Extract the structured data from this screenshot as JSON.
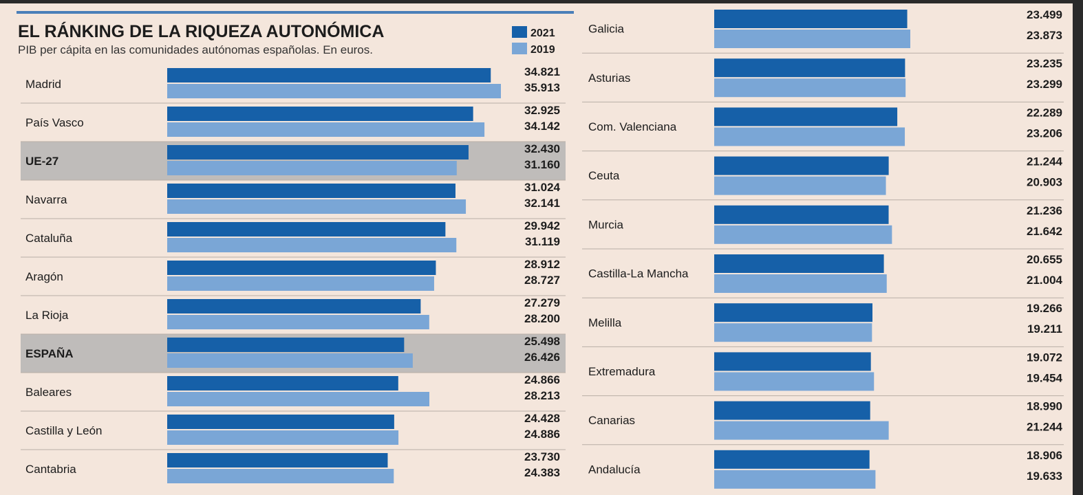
{
  "title": "EL RÁNKING DE LA RIQUEZA AUTONÓMICA",
  "subtitle": "PIB per cápita en las comunidades autónomas españolas. En euros.",
  "colors": {
    "y2021": "#1660a8",
    "y2019": "#7aa6d6",
    "highlight": "#bfbcba",
    "background": "#f4e6dc"
  },
  "chart_data": {
    "type": "bar",
    "orientation": "horizontal",
    "title": "EL RÁNKING DE LA RIQUEZA AUTONÓMICA",
    "subtitle": "PIB per cápita en las comunidades autónomas españolas. En euros.",
    "legend": [
      "2021",
      "2019"
    ],
    "legend_position": "top-right",
    "xlim": [
      0,
      36000
    ],
    "series": [
      {
        "name": "2021",
        "color": "#1660a8"
      },
      {
        "name": "2019",
        "color": "#7aa6d6"
      }
    ],
    "panels": [
      {
        "rows": [
          {
            "label": "Madrid",
            "v2021": 34821,
            "v2019": 35913,
            "t2021": "34.821",
            "t2019": "35.913",
            "highlight": false
          },
          {
            "label": "País Vasco",
            "v2021": 32925,
            "v2019": 34142,
            "t2021": "32.925",
            "t2019": "34.142",
            "highlight": false
          },
          {
            "label": "UE-27",
            "v2021": 32430,
            "v2019": 31160,
            "t2021": "32.430",
            "t2019": "31.160",
            "highlight": true
          },
          {
            "label": "Navarra",
            "v2021": 31024,
            "v2019": 32141,
            "t2021": "31.024",
            "t2019": "32.141",
            "highlight": false
          },
          {
            "label": "Cataluña",
            "v2021": 29942,
            "v2019": 31119,
            "t2021": "29.942",
            "t2019": "31.119",
            "highlight": false
          },
          {
            "label": "Aragón",
            "v2021": 28912,
            "v2019": 28727,
            "t2021": "28.912",
            "t2019": "28.727",
            "highlight": false
          },
          {
            "label": "La Rioja",
            "v2021": 27279,
            "v2019": 28200,
            "t2021": "27.279",
            "t2019": "28.200",
            "highlight": false
          },
          {
            "label": "ESPAÑA",
            "v2021": 25498,
            "v2019": 26426,
            "t2021": "25.498",
            "t2019": "26.426",
            "highlight": true
          },
          {
            "label": "Baleares",
            "v2021": 24866,
            "v2019": 28213,
            "t2021": "24.866",
            "t2019": "28.213",
            "highlight": false
          },
          {
            "label": "Castilla y León",
            "v2021": 24428,
            "v2019": 24886,
            "t2021": "24.428",
            "t2019": "24.886",
            "highlight": false
          },
          {
            "label": "Cantabria",
            "v2021": 23730,
            "v2019": 24383,
            "t2021": "23.730",
            "t2019": "24.383",
            "highlight": false
          }
        ]
      },
      {
        "rows": [
          {
            "label": "Galicia",
            "v2021": 23499,
            "v2019": 23873,
            "t2021": "23.499",
            "t2019": "23.873",
            "highlight": false
          },
          {
            "label": "Asturias",
            "v2021": 23235,
            "v2019": 23299,
            "t2021": "23.235",
            "t2019": "23.299",
            "highlight": false
          },
          {
            "label": "Com. Valenciana",
            "v2021": 22289,
            "v2019": 23206,
            "t2021": "22.289",
            "t2019": "23.206",
            "highlight": false
          },
          {
            "label": "Ceuta",
            "v2021": 21244,
            "v2019": 20903,
            "t2021": "21.244",
            "t2019": "20.903",
            "highlight": false
          },
          {
            "label": "Murcia",
            "v2021": 21236,
            "v2019": 21642,
            "t2021": "21.236",
            "t2019": "21.642",
            "highlight": false
          },
          {
            "label": "Castilla-La Mancha",
            "v2021": 20655,
            "v2019": 21004,
            "t2021": "20.655",
            "t2019": "21.004",
            "highlight": false
          },
          {
            "label": "Melilla",
            "v2021": 19266,
            "v2019": 19211,
            "t2021": "19.266",
            "t2019": "19.211",
            "highlight": false
          },
          {
            "label": "Extremadura",
            "v2021": 19072,
            "v2019": 19454,
            "t2021": "19.072",
            "t2019": "19.454",
            "highlight": false
          },
          {
            "label": "Canarias",
            "v2021": 18990,
            "v2019": 21244,
            "t2021": "18.990",
            "t2019": "21.244",
            "highlight": false
          },
          {
            "label": "Andalucía",
            "v2021": 18906,
            "v2019": 19633,
            "t2021": "18.906",
            "t2019": "19.633",
            "highlight": false
          }
        ]
      }
    ]
  }
}
